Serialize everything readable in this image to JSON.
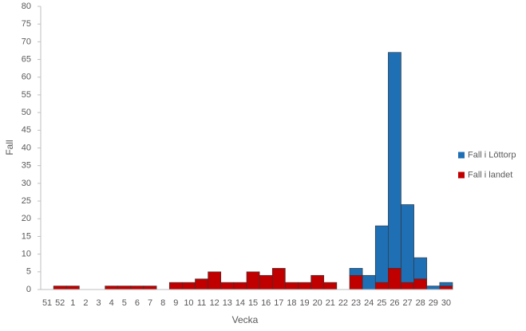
{
  "chart_data": {
    "type": "stacked_bar",
    "x_label": "Vecka",
    "y_label": "Fall",
    "categories": [
      "51",
      "52",
      "1",
      "2",
      "3",
      "4",
      "5",
      "6",
      "7",
      "8",
      "9",
      "10",
      "11",
      "12",
      "13",
      "14",
      "15",
      "16",
      "17",
      "18",
      "19",
      "20",
      "21",
      "22",
      "23",
      "24",
      "25",
      "26",
      "27",
      "28",
      "29",
      "30"
    ],
    "series": [
      {
        "name": "Fall i landet",
        "color": "#c00000",
        "values": [
          0,
          1,
          1,
          0,
          0,
          1,
          1,
          1,
          1,
          0,
          2,
          2,
          3,
          5,
          2,
          2,
          5,
          4,
          6,
          2,
          2,
          4,
          2,
          0,
          4,
          0,
          2,
          6,
          2,
          3,
          0,
          1
        ]
      },
      {
        "name": "Fall i Löttorp",
        "color": "#1f6fb5",
        "values": [
          0,
          0,
          0,
          0,
          0,
          0,
          0,
          0,
          0,
          0,
          0,
          0,
          0,
          0,
          0,
          0,
          0,
          0,
          0,
          0,
          0,
          0,
          0,
          0,
          2,
          4,
          16,
          61,
          22,
          6,
          1,
          1
        ]
      }
    ],
    "legend_order": [
      1,
      0
    ],
    "legend_position": "right",
    "ylim": [
      0,
      80
    ],
    "yticks": [
      0,
      5,
      10,
      15,
      20,
      25,
      30,
      35,
      40,
      45,
      50,
      55,
      60,
      65,
      70,
      75,
      80
    ],
    "grid": false
  }
}
